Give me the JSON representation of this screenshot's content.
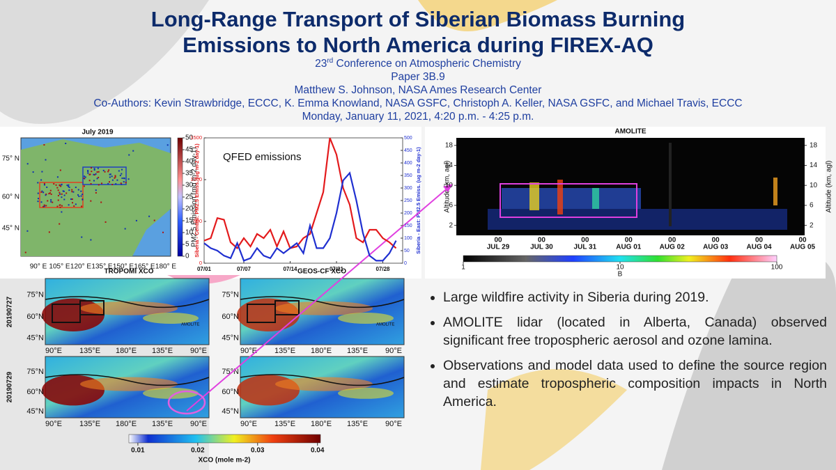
{
  "header": {
    "title_lines": [
      "Long-Range Transport of Siberian Biomass Burning",
      "Emissions to North America during FIREX-AQ"
    ],
    "conference_ordinal": "23",
    "conference_suffix": "rd",
    "conference_name": " Conference on Atmospheric Chemistry",
    "paper": "Paper 3B.9",
    "presenter": "Matthew S. Johnson, NASA Ames Research Center",
    "coauthors": "Co-Authors: Kevin Strawbridge, ECCC, K. Emma Knowland, NASA GSFC, Christoph A. Keller, NASA GSFC, and Michael Travis, ECCC",
    "date": "Monday, January 11, 2021, 4:20 p.m. - 4:25 p.m."
  },
  "emission_map": {
    "title": "July 2019",
    "lat_labels": [
      "75° N",
      "60° N",
      "45° N"
    ],
    "lon_labels": [
      "90° E",
      "105° E",
      "120° E",
      "135° E",
      "150° E",
      "165° E",
      "180° E"
    ],
    "colorbar_lim": [
      0,
      50
    ],
    "colorbar_ticks": [
      0,
      5,
      10,
      15,
      20,
      25,
      30,
      35,
      40,
      45,
      50
    ],
    "colorbar_label": "PM2.5 Emission (mg m-2 day-1)"
  },
  "chart_data": {
    "type": "line",
    "title": "QFED emissions",
    "x": [
      1,
      2,
      3,
      4,
      5,
      6,
      7,
      8,
      9,
      10,
      11,
      12,
      13,
      14,
      15,
      16,
      17,
      18,
      19,
      20,
      21,
      22,
      23,
      24,
      25,
      26,
      27,
      28,
      29,
      30
    ],
    "xlim": [
      1,
      31
    ],
    "xticks": [
      {
        "value": 1,
        "label": "07/01"
      },
      {
        "value": 7,
        "label": "07/07"
      },
      {
        "value": 14,
        "label": "07/14"
      },
      {
        "value": 21,
        "label": "07/21"
      },
      {
        "value": 28,
        "label": "07/28"
      }
    ],
    "ylim": [
      0,
      1500
    ],
    "yticks": [
      0,
      500,
      1000,
      1500
    ],
    "y2lim": [
      0,
      500
    ],
    "y2ticks": [
      0,
      50,
      100,
      150,
      200,
      250,
      300,
      350,
      400,
      450,
      500
    ],
    "ylabel": "Siberia - Central: PM2.5 Emiss. (ug m-2 day-1)",
    "y2label": "Siberia - East: PM2.5 Emiss. (ug m-2 day-1)",
    "series": [
      {
        "color": "#e31a1c",
        "values": [
          270,
          300,
          540,
          520,
          250,
          180,
          300,
          200,
          350,
          300,
          400,
          200,
          380,
          180,
          200,
          300,
          350,
          600,
          850,
          1500,
          1300,
          900,
          700,
          300,
          250,
          400,
          400,
          300,
          250,
          180
        ]
      },
      {
        "color": "#1f2fd0",
        "values": [
          80,
          60,
          50,
          30,
          20,
          80,
          10,
          20,
          60,
          30,
          20,
          60,
          40,
          60,
          80,
          40,
          150,
          60,
          60,
          100,
          200,
          330,
          360,
          250,
          120,
          30,
          10,
          10,
          40,
          90
        ],
        "axis": "y2"
      }
    ]
  },
  "amolite": {
    "title": "AMOLITE",
    "ylim": [
      0,
      19.5
    ],
    "yticks": [
      2,
      6,
      10,
      14,
      18
    ],
    "ylabel": "Altitude (km, agl)",
    "date_ticks": [
      {
        "hour": "00",
        "date": "JUL 29"
      },
      {
        "hour": "00",
        "date": "JUL 30"
      },
      {
        "hour": "00",
        "date": "JUL 31"
      },
      {
        "hour": "00",
        "date": "AUG 01"
      },
      {
        "hour": "00",
        "date": "AUG 02"
      },
      {
        "hour": "00",
        "date": "AUG 03"
      },
      {
        "hour": "00",
        "date": "AUG 04"
      },
      {
        "hour": "00",
        "date": "AUG 05"
      }
    ],
    "colorbar_log": true,
    "colorbar_lim": [
      1,
      100
    ],
    "colorbar_ticks": [
      1,
      10,
      100
    ],
    "colorbar_label": "B"
  },
  "xco": {
    "panel_titles": [
      "TROPOMI XCO",
      "GEOS-CF XCO"
    ],
    "row_labels": [
      "20190727",
      "20190729"
    ],
    "lat_labels": [
      "75°N",
      "60°N",
      "45°N"
    ],
    "lon_labels": [
      "90°E",
      "135°E",
      "180°E",
      "135°E",
      "90°E"
    ],
    "station_label": "AMOLITE",
    "colorbar_lim": [
      0.0085,
      0.0405
    ],
    "colorbar_ticks": [
      0.01,
      0.02,
      0.03,
      0.04
    ],
    "colorbar_label": "XCO (mole m-2)"
  },
  "bullets": [
    "Large wildfire activity in Siberia during 2019.",
    "AMOLITE lidar (located in Alberta, Canada) observed significant free tropospheric aerosol and ozone lamina.",
    "Observations and model data used to define the source region and estimate tropospheric composition impacts in North America."
  ]
}
